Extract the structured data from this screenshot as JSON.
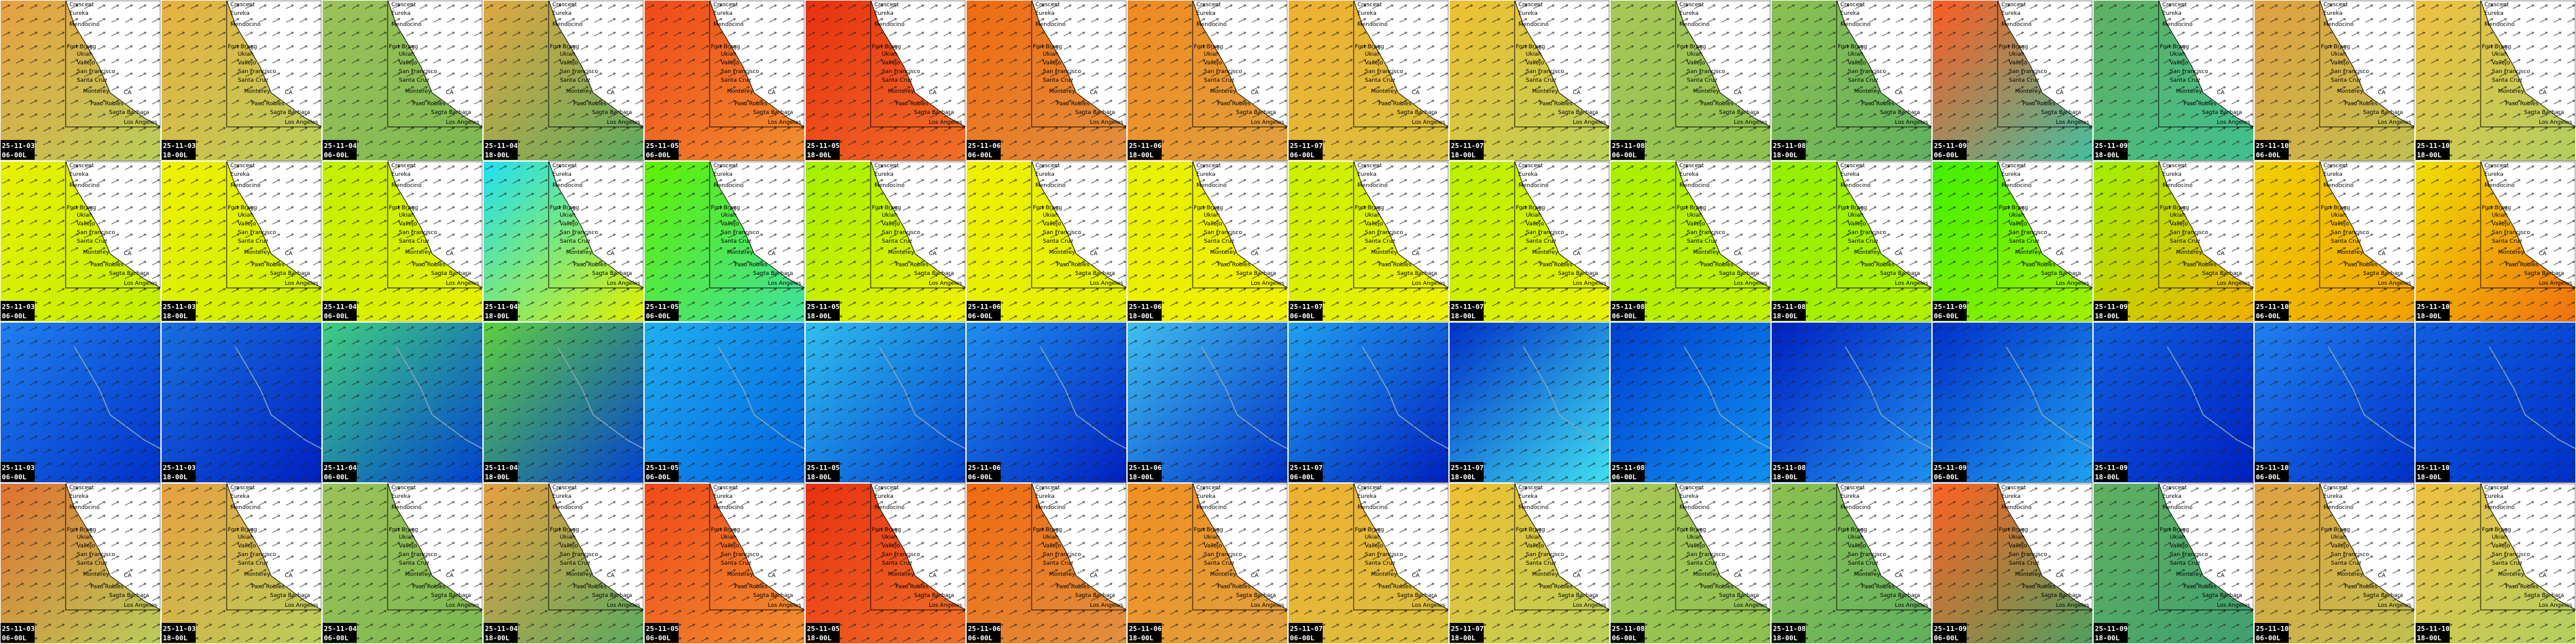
{
  "columns": [
    {
      "date": "25-11-03",
      "time": "06-00L"
    },
    {
      "date": "25-11-03",
      "time": "18-00L"
    },
    {
      "date": "25-11-04",
      "time": "06-00L"
    },
    {
      "date": "25-11-04",
      "time": "18-00L"
    },
    {
      "date": "25-11-05",
      "time": "06-00L"
    },
    {
      "date": "25-11-05",
      "time": "18-00L"
    },
    {
      "date": "25-11-06",
      "time": "06-00L"
    },
    {
      "date": "25-11-06",
      "time": "18-00L"
    },
    {
      "date": "25-11-07",
      "time": "06-00L"
    },
    {
      "date": "25-11-07",
      "time": "18-00L"
    },
    {
      "date": "25-11-08",
      "time": "06-00L"
    },
    {
      "date": "25-11-08",
      "time": "18-00L"
    },
    {
      "date": "25-11-09",
      "time": "06-00L"
    },
    {
      "date": "25-11-09",
      "time": "18-00L"
    },
    {
      "date": "25-11-10",
      "time": "06-00L"
    },
    {
      "date": "25-11-10",
      "time": "18-00L"
    }
  ],
  "places": [
    "Crescent",
    "Eureka",
    "Mendocino",
    "Fort Bragg",
    "Ukiah",
    "Vallejo",
    "San Francisco",
    "Santa Cruz",
    "Monterey",
    "CA",
    "Paso Robles",
    "Santa Barbara",
    "Los Angeles"
  ]
}
